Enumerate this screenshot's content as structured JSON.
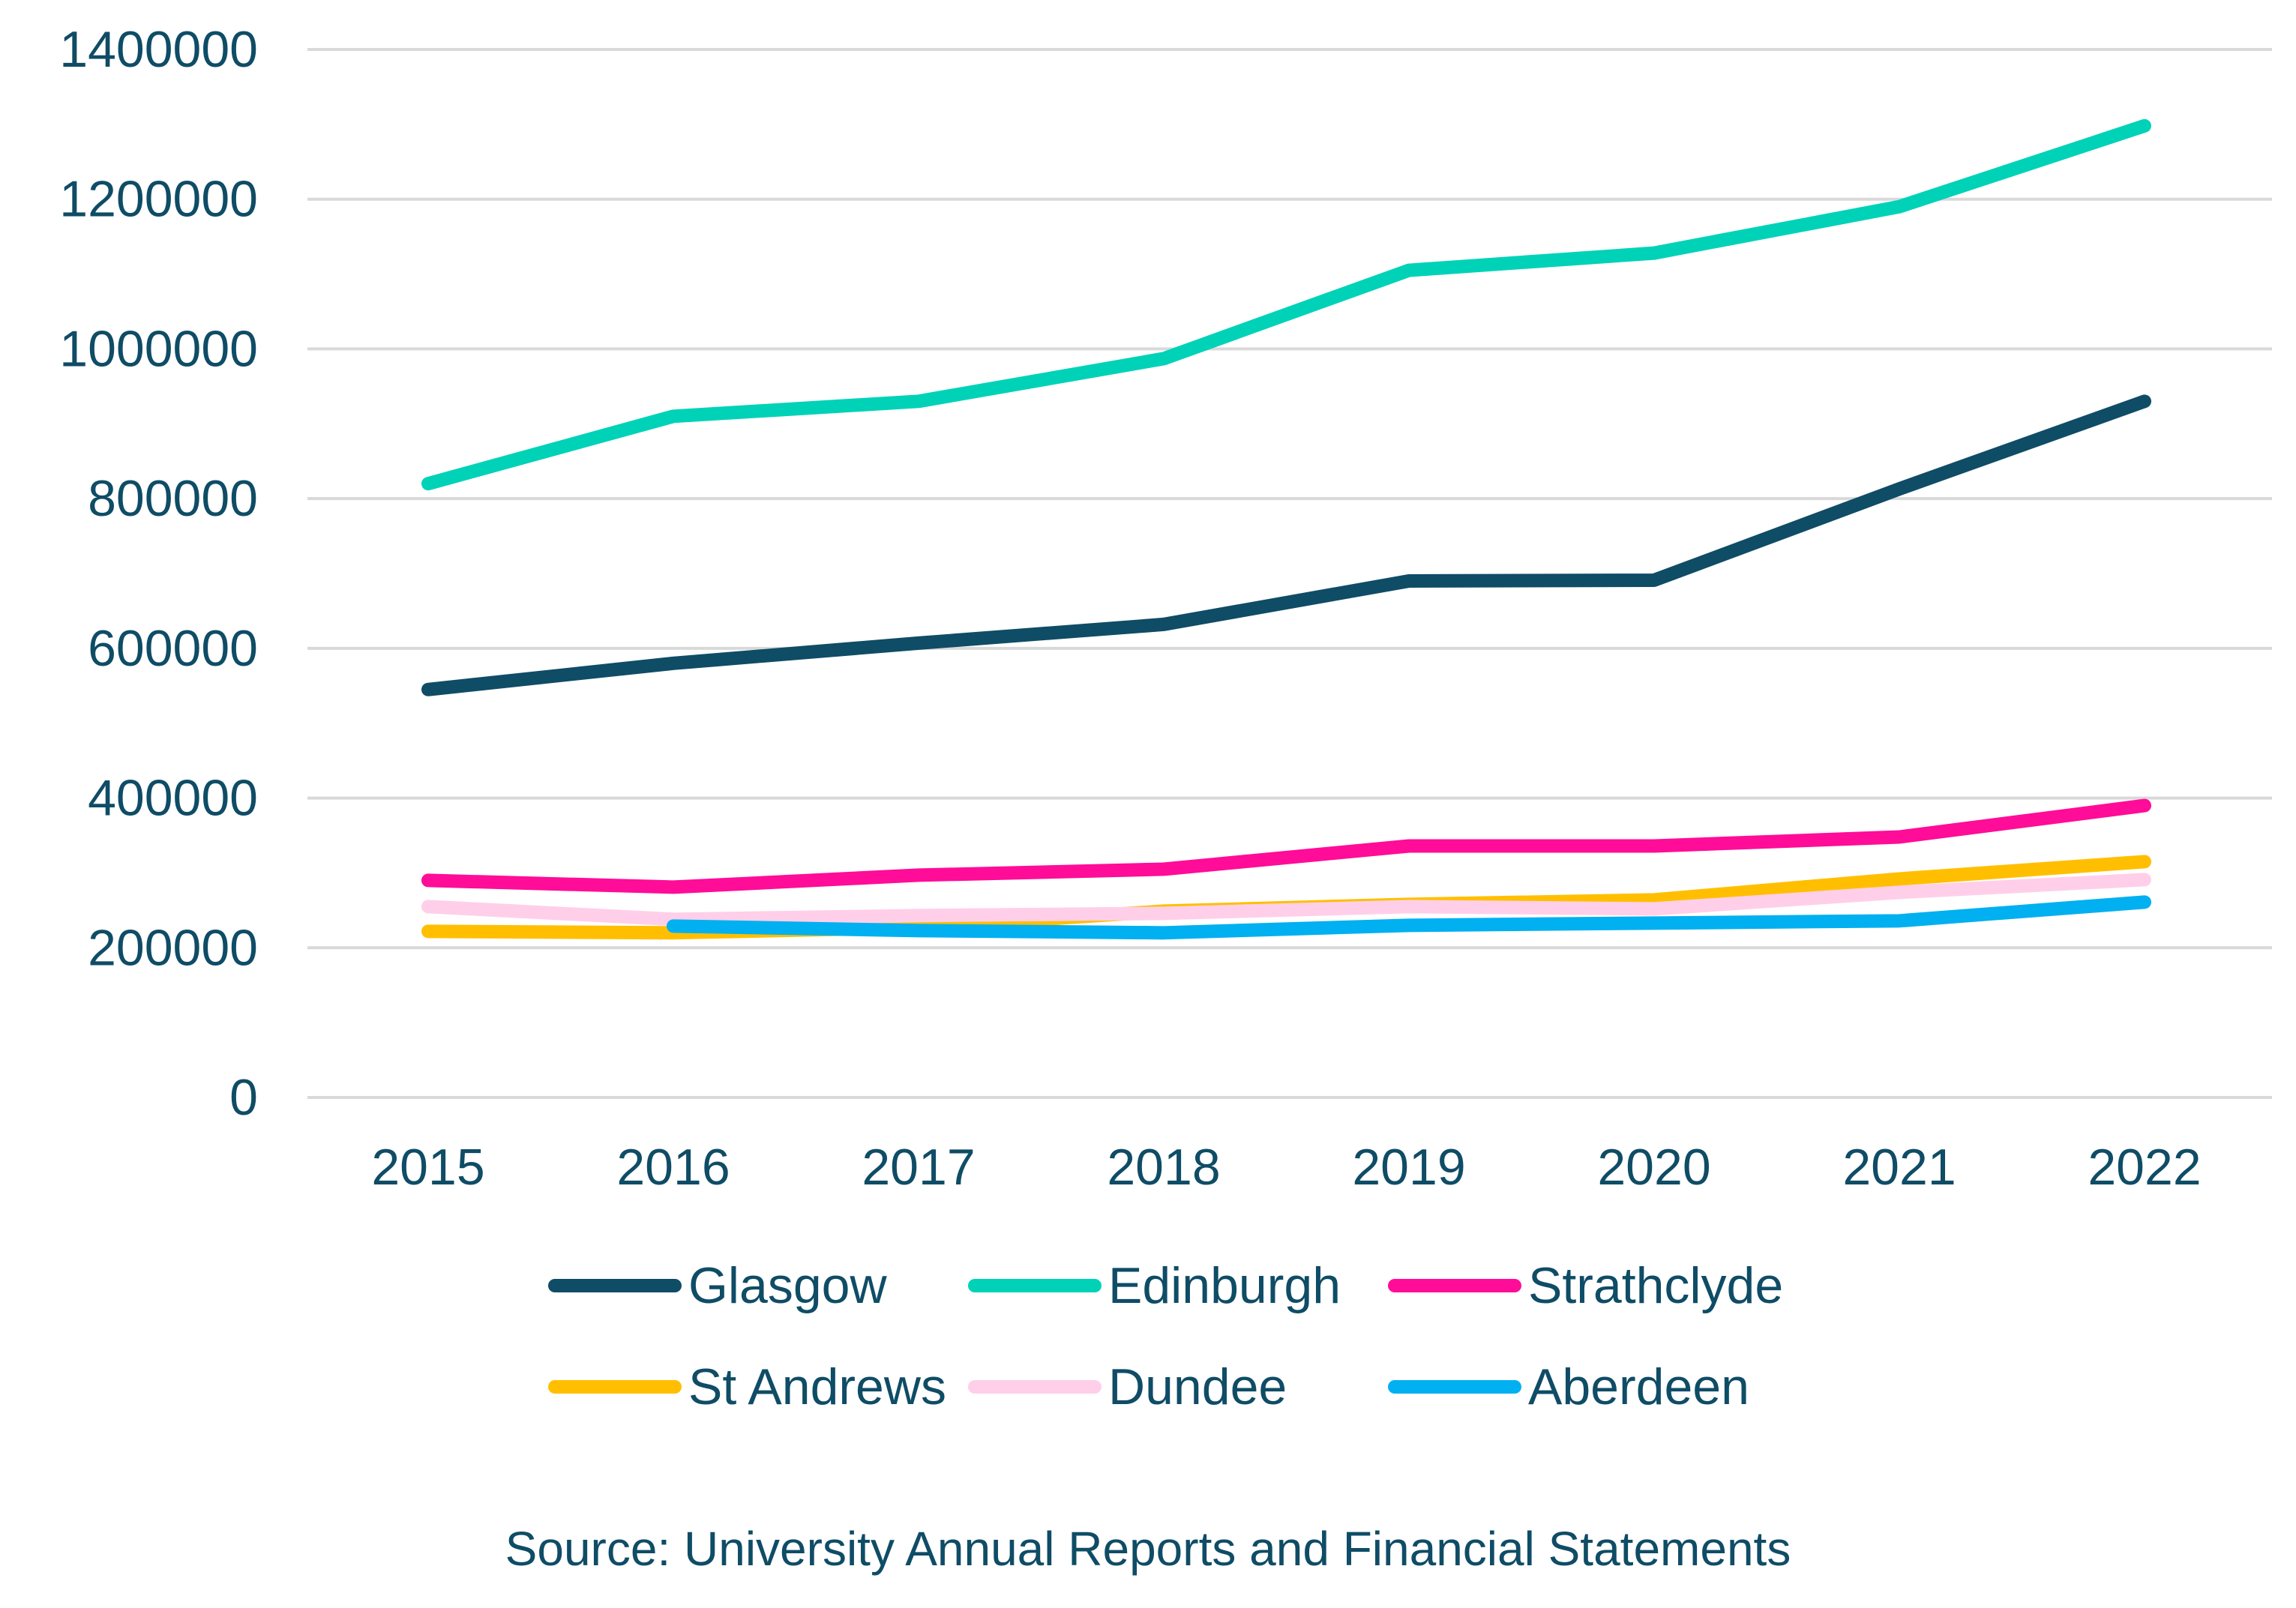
{
  "chart_data": {
    "type": "line",
    "title": "",
    "subtitle": "",
    "xlabel": "",
    "ylabel": "",
    "x": [
      "2015",
      "2016",
      "2017",
      "2018",
      "2019",
      "2020",
      "2021",
      "2022"
    ],
    "y_ticks": [
      "0",
      "200000",
      "400000",
      "600000",
      "800000",
      "1000000",
      "1200000",
      "1400000"
    ],
    "ylim": [
      0,
      1400000
    ],
    "grid": true,
    "legend_position": "bottom",
    "series": [
      {
        "name": "Glasgow",
        "color": "#0f4c66",
        "values": [
          545000,
          580000,
          607000,
          632000,
          690000,
          691000,
          813000,
          930000
        ]
      },
      {
        "name": "Edinburgh",
        "color": "#00d2b8",
        "values": [
          820000,
          910000,
          930000,
          987000,
          1105000,
          1128000,
          1190000,
          1298000
        ]
      },
      {
        "name": "Strathclyde",
        "color": "#ff0c98",
        "values": [
          290000,
          281000,
          297000,
          305000,
          336000,
          336000,
          348000,
          390000
        ]
      },
      {
        "name": "St Andrews",
        "color": "#ffbf00",
        "values": [
          222000,
          220000,
          227000,
          249000,
          258000,
          264000,
          292000,
          315000
        ]
      },
      {
        "name": "Dundee",
        "color": "#ffcfe9",
        "values": [
          255000,
          238000,
          243000,
          246000,
          255000,
          252000,
          274000,
          291000
        ]
      },
      {
        "name": "Aberdeen",
        "color": "#00b0f0",
        "values": [
          null,
          229000,
          223000,
          220000,
          230000,
          233000,
          236000,
          261000
        ]
      }
    ]
  },
  "source_text": "Source: University Annual Reports and Financial Statements"
}
